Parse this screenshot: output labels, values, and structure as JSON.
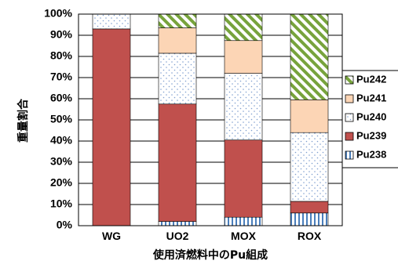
{
  "chart_data": {
    "type": "bar",
    "stacked": true,
    "categories": [
      "WG",
      "UO2",
      "MOX",
      "ROX"
    ],
    "xlabel": "使用済燃料中のPu組成",
    "ylabel": "重量割合",
    "ylim": [
      0,
      100
    ],
    "yticks": [
      "0%",
      "10%",
      "20%",
      "30%",
      "40%",
      "50%",
      "60%",
      "70%",
      "80%",
      "90%",
      "100%"
    ],
    "grid": true,
    "legend_position": "right",
    "series": [
      {
        "name": "Pu238",
        "values": [
          0,
          2,
          4,
          6
        ],
        "color": "#4a7ebb",
        "pattern": "vertical-stripes"
      },
      {
        "name": "Pu239",
        "values": [
          93,
          55.5,
          36.5,
          5.5
        ],
        "color": "#c0504d",
        "pattern": "solid"
      },
      {
        "name": "Pu240",
        "values": [
          7,
          24,
          31.5,
          32.5
        ],
        "color": "#7f9fd0",
        "pattern": "dots"
      },
      {
        "name": "Pu241",
        "values": [
          0,
          12,
          15.5,
          15.5
        ],
        "color": "#fcd5b5",
        "pattern": "solid"
      },
      {
        "name": "Pu242",
        "values": [
          0,
          6.5,
          12.5,
          40.5
        ],
        "color": "#77a33c",
        "pattern": "diagonal-stripes"
      }
    ],
    "legend_order": [
      "Pu242",
      "Pu241",
      "Pu240",
      "Pu239",
      "Pu238"
    ]
  }
}
